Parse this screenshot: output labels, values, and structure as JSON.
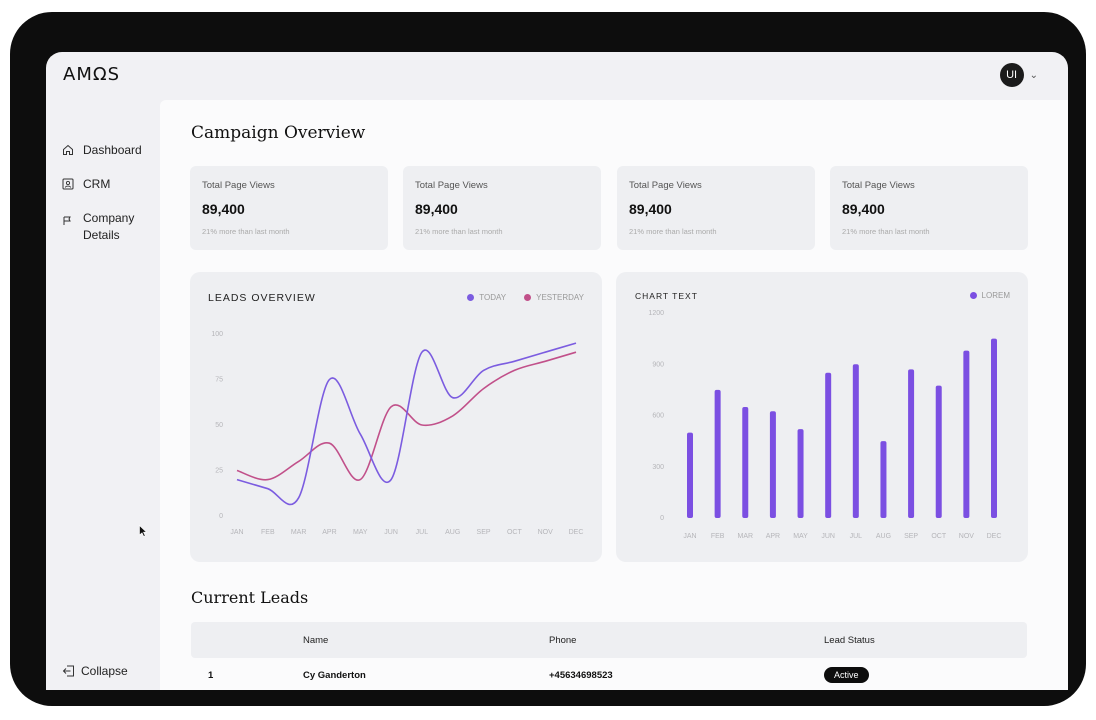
{
  "app": {
    "logo": "AMΩS",
    "user_initials": "UI"
  },
  "sidebar": {
    "items": [
      {
        "label": "Dashboard",
        "icon": "home-icon"
      },
      {
        "label": "CRM",
        "icon": "contact-card-icon"
      },
      {
        "label": "Company Details",
        "icon": "flag-icon"
      }
    ],
    "collapse_label": "Collapse"
  },
  "main": {
    "title": "Campaign Overview",
    "stats": [
      {
        "label": "Total Page Views",
        "value": "89,400",
        "sub": "21% more than last month"
      },
      {
        "label": "Total Page Views",
        "value": "89,400",
        "sub": "21% more than last month"
      },
      {
        "label": "Total Page Views",
        "value": "89,400",
        "sub": "21% more than last month"
      },
      {
        "label": "Total Page Views",
        "value": "89,400",
        "sub": "21% more than last month"
      }
    ],
    "leads_title": "Current Leads",
    "table": {
      "headers": [
        "Name",
        "Phone",
        "Lead Status"
      ],
      "rows": [
        {
          "index": "1",
          "name": "Cy Ganderton",
          "phone": "+45634698523",
          "status": "Active"
        }
      ]
    }
  },
  "colors": {
    "purple": "#7b5ce0",
    "pink": "#c1508a",
    "bar": "#7b4fe2"
  },
  "chart_data": [
    {
      "type": "line",
      "title": "LEADS OVERVIEW",
      "categories": [
        "JAN",
        "FEB",
        "MAR",
        "APR",
        "MAY",
        "JUN",
        "JUL",
        "AUG",
        "SEP",
        "OCT",
        "NOV",
        "DEC"
      ],
      "yticks": [
        "0",
        "25",
        "50",
        "75",
        "100"
      ],
      "ylim": [
        0,
        100
      ],
      "series": [
        {
          "name": "TODAY",
          "values": [
            20,
            15,
            10,
            75,
            45,
            20,
            90,
            65,
            80,
            85,
            90,
            95
          ]
        },
        {
          "name": "YESTERDAY",
          "values": [
            25,
            20,
            30,
            40,
            20,
            60,
            50,
            55,
            70,
            80,
            85,
            90
          ]
        }
      ],
      "legend_position": "top-right"
    },
    {
      "type": "bar",
      "title": "CHART TEXT",
      "categories": [
        "JAN",
        "FEB",
        "MAR",
        "APR",
        "MAY",
        "JUN",
        "JUL",
        "AUG",
        "SEP",
        "OCT",
        "NOV",
        "DEC"
      ],
      "yticks": [
        "0",
        "300",
        "600",
        "900",
        "1200"
      ],
      "ylim": [
        0,
        1200
      ],
      "series": [
        {
          "name": "LOREM",
          "values": [
            500,
            750,
            650,
            625,
            520,
            850,
            900,
            450,
            870,
            775,
            980,
            1050
          ]
        }
      ],
      "legend_position": "top-right"
    }
  ]
}
